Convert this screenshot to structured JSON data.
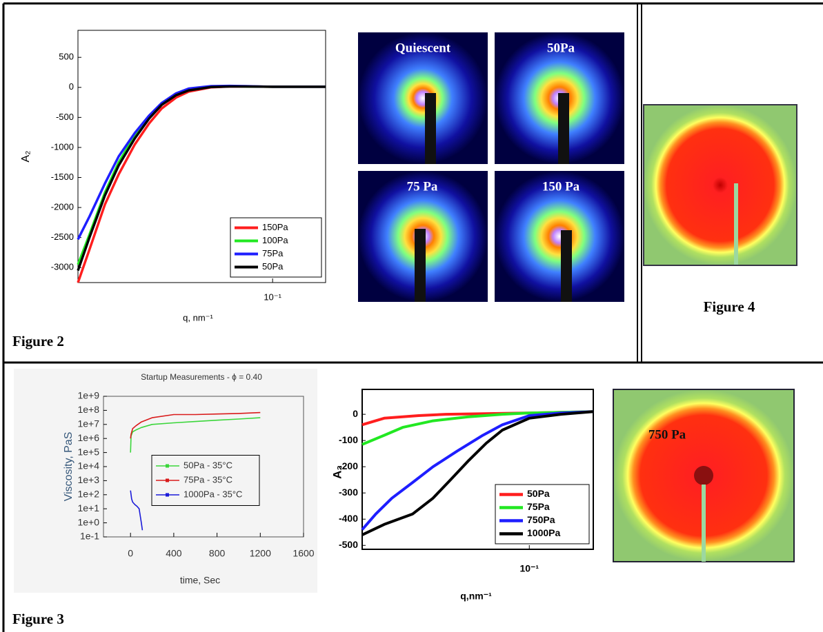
{
  "chart_data": [
    {
      "type": "line",
      "x_label": "q, nm⁻¹",
      "y_label": "A₂",
      "xscale": "log",
      "xlim": [
        0.02,
        0.155
      ],
      "ylim": [
        -3250,
        950
      ],
      "xticks": [
        {
          "value": 0.1,
          "label": "10⁻¹"
        }
      ],
      "yticks": [
        500,
        0,
        -500,
        -1000,
        -1500,
        -2000,
        -2500,
        -3000
      ],
      "legend": "lower right",
      "x": [
        0.02,
        0.022,
        0.025,
        0.028,
        0.032,
        0.036,
        0.04,
        0.045,
        0.05,
        0.06,
        0.07,
        0.08,
        0.1,
        0.12,
        0.155
      ],
      "series": [
        {
          "name": "150Pa",
          "color": "#ff1e1e",
          "values": [
            -3250,
            -2700,
            -1950,
            -1450,
            -950,
            -600,
            -350,
            -170,
            -70,
            0,
            15,
            15,
            10,
            10,
            10
          ]
        },
        {
          "name": "100Pa",
          "color": "#22e822",
          "values": [
            -2950,
            -2450,
            -1750,
            -1250,
            -800,
            -480,
            -260,
            -110,
            -30,
            15,
            20,
            15,
            10,
            10,
            10
          ]
        },
        {
          "name": "75Pa",
          "color": "#1e1eff",
          "values": [
            -2530,
            -2150,
            -1600,
            -1150,
            -760,
            -470,
            -260,
            -100,
            -20,
            20,
            25,
            20,
            10,
            10,
            10
          ]
        },
        {
          "name": "50Pa",
          "color": "#000000",
          "values": [
            -3050,
            -2500,
            -1800,
            -1300,
            -850,
            -520,
            -290,
            -130,
            -50,
            5,
            15,
            15,
            10,
            10,
            10
          ]
        }
      ]
    },
    {
      "type": "line",
      "title": "Startup Measurements - ϕ = 0.40",
      "x_label": "time, Sec",
      "y_label": "Viscosity, PaS",
      "yscale": "log",
      "xlim": [
        -250,
        1600
      ],
      "ylim": [
        0.1,
        1000000000
      ],
      "xticks": [
        0,
        400,
        800,
        1200,
        1600
      ],
      "yticks": [
        {
          "value": 1000000000,
          "label": "1e+9"
        },
        {
          "value": 100000000,
          "label": "1e+8"
        },
        {
          "value": 10000000,
          "label": "1e+7"
        },
        {
          "value": 1000000,
          "label": "1e+6"
        },
        {
          "value": 100000,
          "label": "1e+5"
        },
        {
          "value": 10000,
          "label": "1e+4"
        },
        {
          "value": 1000,
          "label": "1e+3"
        },
        {
          "value": 100,
          "label": "1e+2"
        },
        {
          "value": 10,
          "label": "1e+1"
        },
        {
          "value": 1,
          "label": "1e+0"
        },
        {
          "value": 0.1,
          "label": "1e-1"
        }
      ],
      "legend": "center right",
      "series": [
        {
          "name": "50Pa - 35°C",
          "color": "#3ad63a",
          "x": [
            0,
            5,
            20,
            50,
            100,
            200,
            400,
            600,
            800,
            1000,
            1200
          ],
          "values": [
            100000,
            1500000,
            3000000,
            4000000,
            6000000,
            10000000,
            13000000,
            16000000,
            20000000,
            24000000,
            30000000
          ]
        },
        {
          "name": "75Pa - 35°C",
          "color": "#d91a1a",
          "x": [
            0,
            5,
            20,
            50,
            100,
            200,
            400,
            600,
            800,
            1000,
            1200
          ],
          "values": [
            1000000,
            2000000,
            5000000,
            8000000,
            15000000,
            30000000,
            50000000,
            50000000,
            55000000,
            60000000,
            70000000
          ]
        },
        {
          "name": "1000Pa - 35°C",
          "color": "#1a1ad9",
          "x": [
            0,
            10,
            20,
            40,
            60,
            80,
            100,
            110
          ],
          "values": [
            200,
            50,
            30,
            20,
            15,
            10,
            1,
            0.3
          ]
        }
      ]
    },
    {
      "type": "line",
      "x_label": "q,nm⁻¹",
      "y_label": "A₂",
      "xscale": "log",
      "xlim": [
        0.025,
        0.17
      ],
      "ylim": [
        -515,
        95
      ],
      "xticks": [
        {
          "value": 0.1,
          "label": "10⁻¹"
        }
      ],
      "yticks": [
        0,
        -100,
        -200,
        -300,
        -400,
        -500
      ],
      "legend": "lower right",
      "series": [
        {
          "name": "50Pa",
          "color": "#ff1e1e",
          "x": [
            0.025,
            0.03,
            0.04,
            0.05,
            0.1,
            0.17
          ],
          "values": [
            -40,
            -15,
            -5,
            0,
            5,
            10
          ]
        },
        {
          "name": "75Pa",
          "color": "#22e822",
          "x": [
            0.025,
            0.03,
            0.035,
            0.045,
            0.06,
            0.08,
            0.1,
            0.17
          ],
          "values": [
            -115,
            -80,
            -50,
            -25,
            -10,
            0,
            5,
            10
          ]
        },
        {
          "name": "750Pa",
          "color": "#1e1eff",
          "x": [
            0.025,
            0.028,
            0.032,
            0.038,
            0.045,
            0.055,
            0.068,
            0.08,
            0.1,
            0.13,
            0.17
          ],
          "values": [
            -440,
            -380,
            -320,
            -260,
            -200,
            -140,
            -80,
            -40,
            -5,
            5,
            10
          ]
        },
        {
          "name": "1000Pa",
          "color": "#000000",
          "x": [
            0.025,
            0.03,
            0.038,
            0.045,
            0.052,
            0.06,
            0.07,
            0.08,
            0.1,
            0.13,
            0.17
          ],
          "values": [
            -460,
            -420,
            -380,
            -320,
            -250,
            -180,
            -110,
            -60,
            -15,
            0,
            10
          ]
        }
      ]
    }
  ],
  "patterns": [
    "Quiescent",
    "50Pa",
    "75 Pa",
    "150 Pa"
  ],
  "pattern_750": "750 Pa",
  "captions": {
    "figure2": "Figure 2",
    "figure3": "Figure 3",
    "figure4": "Figure 4"
  }
}
